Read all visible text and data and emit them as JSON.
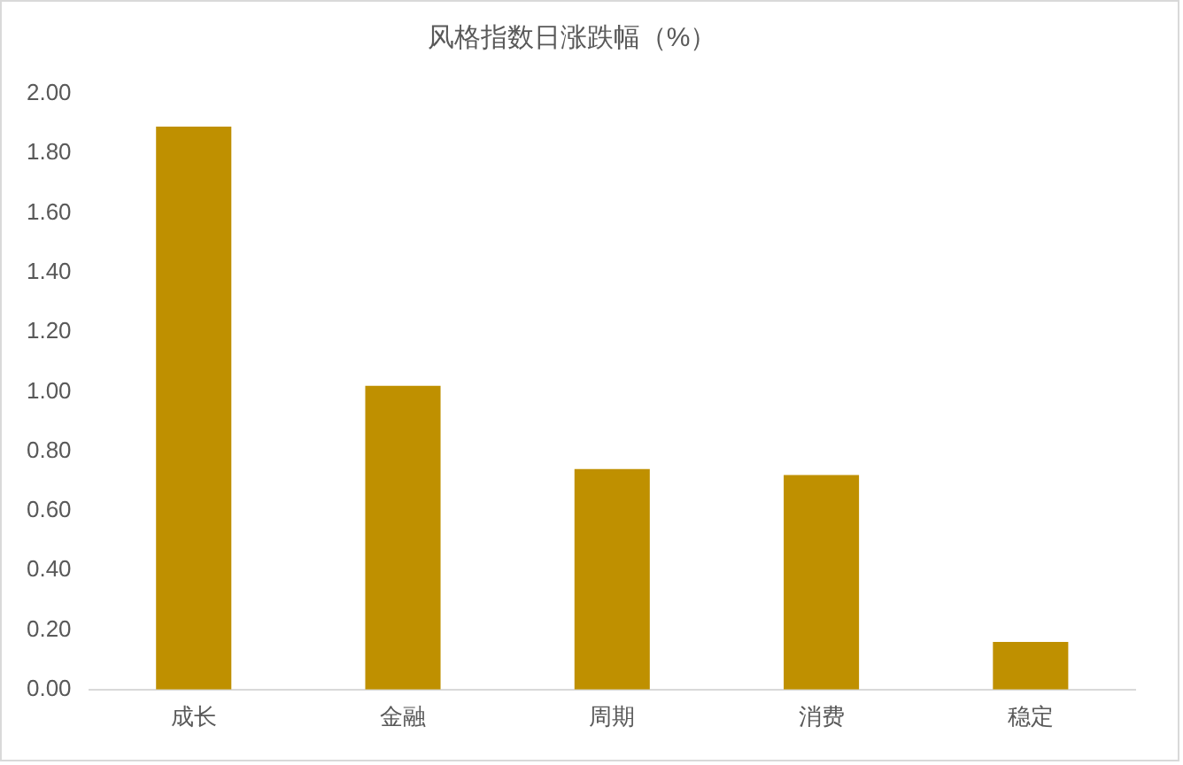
{
  "chart_data": {
    "type": "bar",
    "title": "风格指数日涨跌幅（%）",
    "categories": [
      "成长",
      "金融",
      "周期",
      "消费",
      "稳定"
    ],
    "values": [
      1.89,
      1.02,
      0.74,
      0.72,
      0.16
    ],
    "color": "#bf9000",
    "ylim": [
      0,
      2
    ],
    "yticks": [
      {
        "value": 0,
        "label": "0.00"
      },
      {
        "value": 0.2,
        "label": "0.20"
      },
      {
        "value": 0.4,
        "label": "0.40"
      },
      {
        "value": 0.6,
        "label": "0.60"
      },
      {
        "value": 0.8,
        "label": "0.80"
      },
      {
        "value": 1,
        "label": "1.00"
      },
      {
        "value": 1.2,
        "label": "1.20"
      },
      {
        "value": 1.4,
        "label": "1.40"
      },
      {
        "value": 1.6,
        "label": "1.60"
      },
      {
        "value": 1.8,
        "label": "1.80"
      },
      {
        "value": 2,
        "label": "2.00"
      }
    ],
    "grid": false,
    "legend": false
  }
}
